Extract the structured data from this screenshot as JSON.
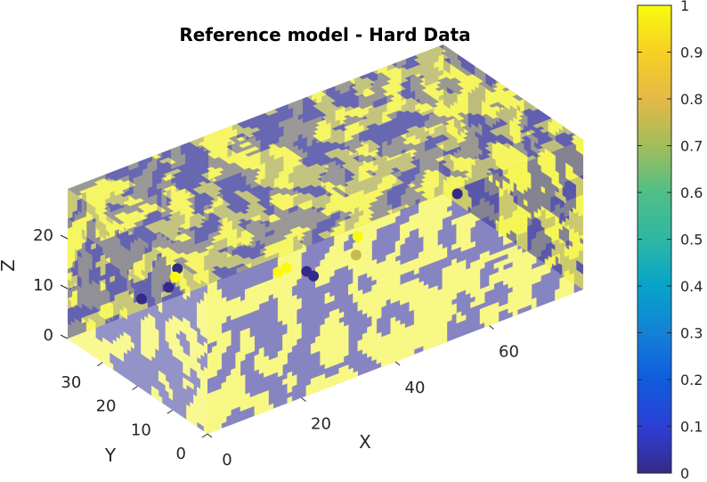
{
  "chart_data": {
    "type": "scatter",
    "title": "Reference model - Hard Data",
    "xlabel": "X",
    "ylabel": "Y",
    "zlabel": "Z",
    "xlim": [
      0,
      80
    ],
    "ylim": [
      0,
      40
    ],
    "zlim": [
      0,
      30
    ],
    "x_ticks": [
      "0",
      "20",
      "40",
      "60"
    ],
    "y_ticks": [
      "0",
      "10",
      "20",
      "30"
    ],
    "z_ticks": [
      "0",
      "10",
      "20"
    ],
    "colorbar": {
      "range": [
        0,
        1
      ],
      "ticks": [
        "0",
        "0.1",
        "0.2",
        "0.3",
        "0.4",
        "0.5",
        "0.6",
        "0.7",
        "0.8",
        "0.9",
        "1"
      ],
      "colormap": "parula"
    },
    "background_model": {
      "type": "binary voxel volume",
      "values": [
        0,
        1
      ],
      "colors": {
        "0": "#3e3c9c",
        "1": "#f5f53a"
      },
      "transparent": true
    },
    "points": [
      {
        "x": 32,
        "y": 0,
        "z": 28,
        "value": 1
      },
      {
        "x": 21,
        "y": 8,
        "z": 21,
        "value": 1
      },
      {
        "x": 22,
        "y": 7,
        "z": 22,
        "value": 1
      },
      {
        "x": 7,
        "y": 18,
        "z": 22,
        "value": 0
      },
      {
        "x": 33,
        "y": 16,
        "z": 13,
        "value": 0
      },
      {
        "x": 33,
        "y": 14,
        "z": 13,
        "value": 0
      },
      {
        "x": 48,
        "y": 22,
        "z": 8,
        "value": 0.75
      },
      {
        "x": 77,
        "y": 32,
        "z": 5,
        "value": 0
      },
      {
        "x": 8,
        "y": 20,
        "z": 19,
        "value": 1
      },
      {
        "x": 12,
        "y": 35,
        "z": 6,
        "value": 0
      },
      {
        "x": 20,
        "y": 38,
        "z": 4,
        "value": 0
      }
    ]
  }
}
